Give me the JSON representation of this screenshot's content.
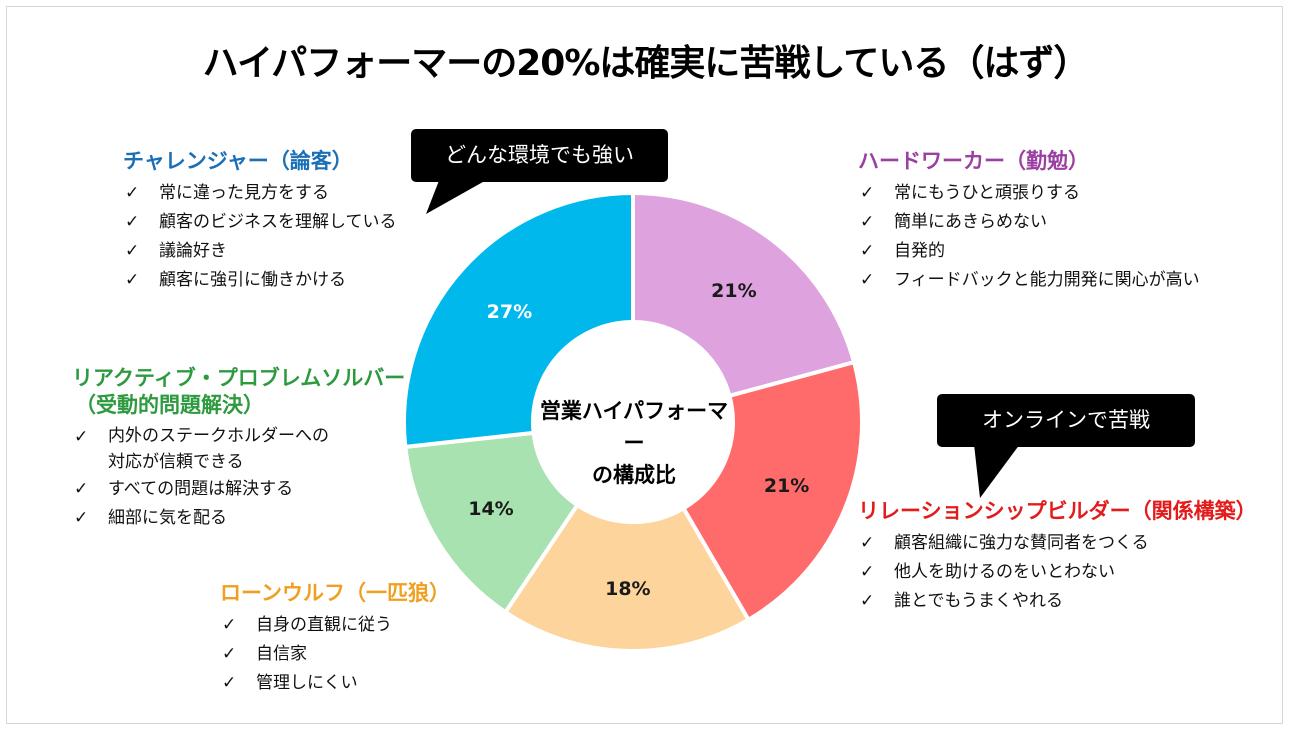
{
  "title": "ハイパフォーマーの20%は確実に苦戦している（はず）",
  "center_label": [
    "営業ハイパフォーマー",
    "の構成比"
  ],
  "chart_data": {
    "type": "pie",
    "donut": true,
    "center_text": "営業ハイパフォーマーの構成比",
    "categories": [
      "ハードワーカー（勤勉）",
      "リレーションシップビルダー（関係構築）",
      "ローンウルフ（一匹狼）",
      "リアクティブ・プロブレムソルバー（受動的問題解決）",
      "チャレンジャー（論客）"
    ],
    "values": [
      21,
      21,
      18,
      14,
      27
    ],
    "data_labels": [
      "21%",
      "21%",
      "18%",
      "14%",
      "27%"
    ],
    "colors": [
      "#dea3df",
      "#ff6b6b",
      "#fdd59c",
      "#a8e2b0",
      "#00b8ec"
    ],
    "label_colors": [
      "#1a1a1a",
      "#1a1a1a",
      "#1a1a1a",
      "#1a1a1a",
      "#ffffff"
    ],
    "start_angle_deg": 0,
    "direction": "clockwise"
  },
  "groups": {
    "challenger": {
      "title": "チャレンジャー（論客）",
      "color": "#1a6fb7",
      "items": [
        "常に違った見方をする",
        "顧客のビジネスを理解している",
        "議論好き",
        "顧客に強引に働きかける"
      ]
    },
    "hardworker": {
      "title": "ハードワーカー（勤勉）",
      "color": "#9b3fa3",
      "items": [
        "常にもうひと頑張りする",
        "簡単にあきらめない",
        "自発的",
        "フィードバックと能力開発に関心が高い"
      ]
    },
    "reactive": {
      "title1": "リアクティブ・プロブレムソルバー",
      "title2": "（受動的問題解決）",
      "color": "#2e9a40",
      "items": [
        [
          "内外のステークホルダーへの",
          "対応が信頼できる"
        ],
        "すべての問題は解決する",
        "細部に気を配る"
      ]
    },
    "relationship": {
      "title": "リレーションシップビルダー（関係構築）",
      "color": "#e41b1b",
      "items": [
        "顧客組織に強力な賛同者をつくる",
        "他人を助けるのをいとわない",
        "誰とでもうまくやれる"
      ]
    },
    "lonewolf": {
      "title": "ローンウルフ（一匹狼）",
      "color": "#f0a020",
      "items": [
        "自身の直観に従う",
        "自信家",
        "管理しにくい"
      ]
    }
  },
  "check_mark": "✓",
  "callouts": {
    "top": "どんな環境でも強い",
    "right": "オンラインで苦戦"
  }
}
